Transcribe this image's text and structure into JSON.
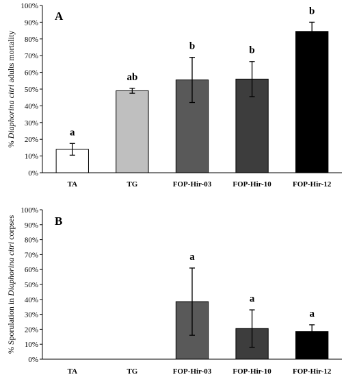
{
  "chart_data": [
    {
      "type": "bar",
      "panel_label": "A",
      "ylabel_parts": [
        "% ",
        "Diaphorina citri",
        " adults mortality"
      ],
      "categories": [
        "TA",
        "TG",
        "FOP-Hir-03",
        "FOP-Hir-10",
        "FOP-Hir-12"
      ],
      "values": [
        14,
        49,
        55.5,
        56,
        84.5
      ],
      "errors": [
        3.5,
        1.5,
        13.5,
        10.5,
        5.5
      ],
      "significance_letters": [
        "a",
        "ab",
        "b",
        "b",
        "b"
      ],
      "ylim": [
        0,
        100
      ],
      "yticks": [
        "0%",
        "10%",
        "20%",
        "30%",
        "40%",
        "50%",
        "60%",
        "70%",
        "80%",
        "90%",
        "100%"
      ],
      "colors": [
        "#ffffff",
        "#bfbfbf",
        "#595959",
        "#3d3d3d",
        "#000000"
      ],
      "grid": false
    },
    {
      "type": "bar",
      "panel_label": "B",
      "ylabel_parts": [
        "% Sporulation in ",
        "Diaphorina citri",
        " corpses"
      ],
      "categories": [
        "TA",
        "TG",
        "FOP-Hir-03",
        "FOP-Hir-10",
        "FOP-Hir-12"
      ],
      "values": [
        0,
        0,
        38.5,
        20.5,
        18.5
      ],
      "errors": [
        0,
        0,
        22.5,
        12.5,
        4.5
      ],
      "significance_letters": [
        "",
        "",
        "a",
        "a",
        "a"
      ],
      "ylim": [
        0,
        100
      ],
      "yticks": [
        "0%",
        "10%",
        "20%",
        "30%",
        "40%",
        "50%",
        "60%",
        "70%",
        "80%",
        "90%",
        "100%"
      ],
      "colors": [
        "#ffffff",
        "#bfbfbf",
        "#595959",
        "#3d3d3d",
        "#000000"
      ],
      "grid": false
    }
  ]
}
